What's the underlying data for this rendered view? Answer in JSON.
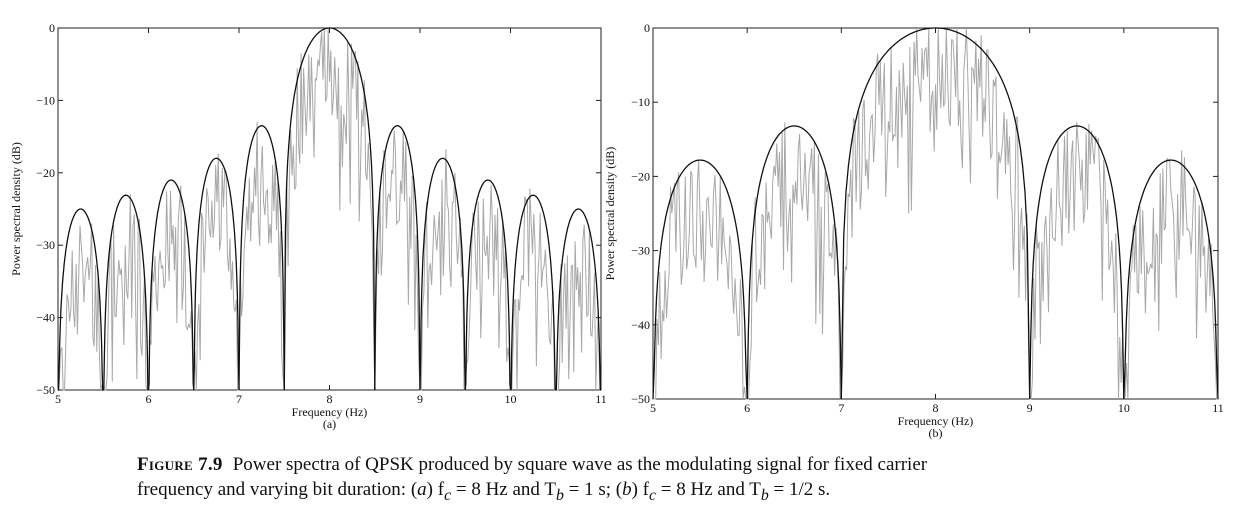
{
  "chart_data": [
    {
      "type": "line",
      "panel_label": "(a)",
      "xlabel": "Frequency (Hz)",
      "ylabel": "Power spectral density (dB)",
      "xlim": [
        5,
        11
      ],
      "ylim": [
        -50,
        0
      ],
      "xticks": [
        "5",
        "6",
        "7",
        "8",
        "9",
        "10",
        "11"
      ],
      "yticks": [
        "0",
        "−10",
        "−20",
        "−30",
        "−40",
        "−50"
      ],
      "fc": 8,
      "Tb": 1,
      "series": [
        {
          "kind": "theoretical-envelope",
          "color": "#111111",
          "peaks": [
            {
              "x": 5.25,
              "y": -25.0
            },
            {
              "x": 5.75,
              "y": -23.1
            },
            {
              "x": 6.25,
              "y": -21.0
            },
            {
              "x": 6.75,
              "y": -18.0
            },
            {
              "x": 7.25,
              "y": -13.5
            },
            {
              "x": 8.0,
              "y": 0.0
            },
            {
              "x": 8.75,
              "y": -13.5
            },
            {
              "x": 9.25,
              "y": -18.0
            },
            {
              "x": 9.75,
              "y": -21.0
            },
            {
              "x": 10.25,
              "y": -23.1
            },
            {
              "x": 10.75,
              "y": -25.0
            }
          ],
          "nulls": [
            5.0,
            5.5,
            6.0,
            6.5,
            7.0,
            7.5,
            8.5,
            9.0,
            9.5,
            10.0,
            10.5,
            11.0
          ]
        },
        {
          "kind": "simulated-spectrum",
          "color": "#a8a8a8"
        }
      ]
    },
    {
      "type": "line",
      "panel_label": "(b)",
      "xlabel": "Frequency (Hz)",
      "ylabel": "Power spectral density (dB)",
      "xlim": [
        5,
        11
      ],
      "ylim": [
        -50,
        0
      ],
      "xticks": [
        "5",
        "6",
        "7",
        "8",
        "9",
        "10",
        "11"
      ],
      "yticks": [
        "0",
        "−10",
        "−20",
        "−30",
        "−40",
        "−50"
      ],
      "fc": 8,
      "Tb": 0.5,
      "series": [
        {
          "kind": "theoretical-envelope",
          "color": "#111111",
          "peaks": [
            {
              "x": 5.55,
              "y": -17.8
            },
            {
              "x": 6.6,
              "y": -13.2
            },
            {
              "x": 8.0,
              "y": 0.0
            },
            {
              "x": 9.4,
              "y": -13.2
            },
            {
              "x": 10.45,
              "y": -17.8
            }
          ],
          "nulls": [
            5.0,
            6.0,
            7.0,
            9.0,
            10.0,
            11.0
          ]
        },
        {
          "kind": "simulated-spectrum",
          "color": "#a8a8a8"
        }
      ]
    }
  ],
  "caption": {
    "figure_label": "Figure 7.9",
    "line1": "Power spectra of QPSK produced by square wave as the modulating signal for fixed carrier",
    "line2_a": "frequency and varying bit duration: (",
    "a": "a",
    "a_params": ") f",
    "sub_c": "c",
    "a_values": " = 8 Hz and T",
    "sub_b": "b",
    "a_tb": " = 1 s; (",
    "b": "b",
    "b_params": ") f",
    "b_values": " = 8 Hz and T",
    "b_tb": " = 1/2 s."
  }
}
